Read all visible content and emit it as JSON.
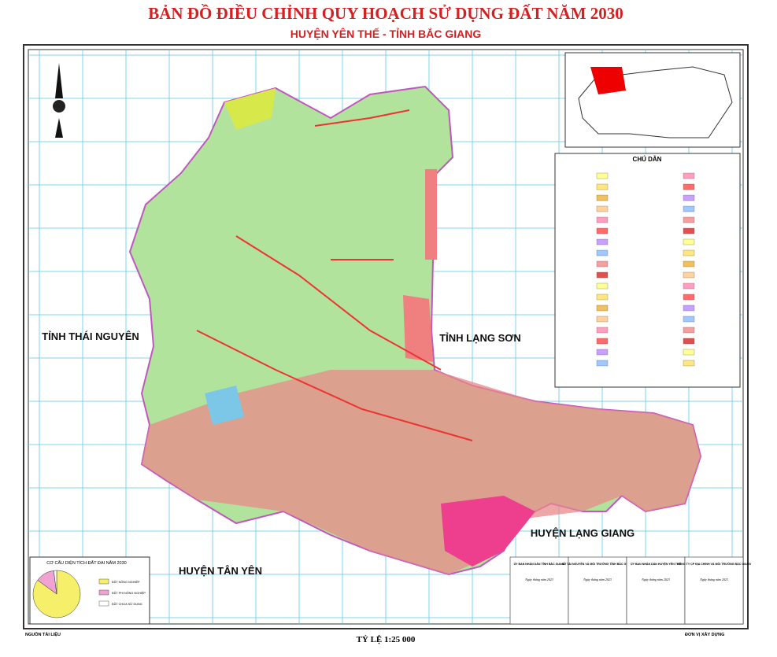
{
  "header": {
    "title": "BẢN ĐỒ ĐIỀU CHỈNH QUY HOẠCH SỬ DỤNG ĐẤT NĂM 2030",
    "subtitle": "HUYỆN YÊN THẾ - TỈNH BẮC GIANG"
  },
  "map_labels": [
    "TỈNH THÁI NGUYÊN",
    "TỈNH LẠNG SƠN",
    "HUYỆN LẠNG GIANG",
    "HUYỆN TÂN YÊN"
  ],
  "legend": {
    "title": "CHÚ DẪN"
  },
  "pie": {
    "title": "CƠ CẤU DIỆN TÍCH ĐẤT ĐAI NĂM 2030",
    "items": [
      {
        "label": "ĐẤT NÔNG NGHIỆP",
        "value": 85,
        "color": "#f5ef6a"
      },
      {
        "label": "ĐẤT PHI NÔNG NGHIỆP",
        "value": 13,
        "color": "#f0a3d2"
      },
      {
        "label": "ĐẤT CHƯA SỬ DỤNG",
        "value": 2,
        "color": "#ffffff"
      }
    ]
  },
  "signatures": [
    {
      "org": "ỦY BAN NHÂN DÂN TỈNH BẮC GIANG",
      "date": "Ngày tháng năm 2023"
    },
    {
      "org": "SỞ TÀI NGUYÊN VÀ MÔI TRƯỜNG TỈNH BẮC GIANG",
      "date": "Ngày tháng năm 2023"
    },
    {
      "org": "ỦY BAN NHÂN DÂN HUYỆN YÊN THẾ",
      "date": "Ngày tháng năm 2023"
    },
    {
      "org": "CÔNG TY CP ĐỊA CHÍNH VÀ MÔI TRƯỜNG BẮC GIANG",
      "date": "Ngày tháng năm 2023"
    }
  ],
  "footer": {
    "scale": "TỶ LỆ 1:25 000",
    "source": "NGUỒN TÀI LIỆU",
    "builder": "ĐƠN VỊ XÂY DỰNG"
  }
}
